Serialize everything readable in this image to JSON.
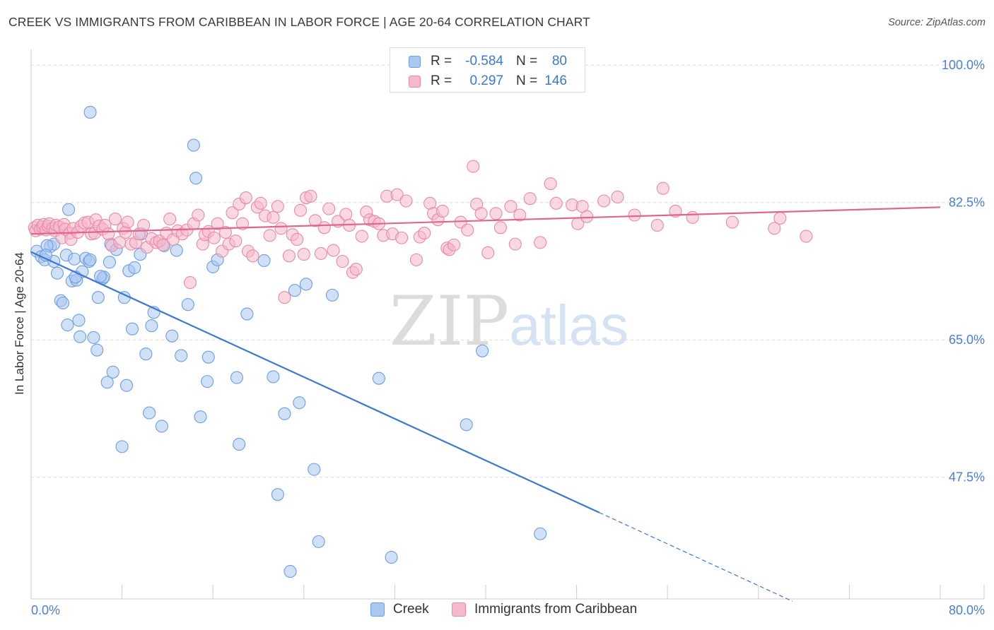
{
  "title": "CREEK VS IMMIGRANTS FROM CARIBBEAN IN LABOR FORCE | AGE 20-64 CORRELATION CHART",
  "source": "Source: ZipAtlas.com",
  "watermark": "ZIPatlas",
  "colors": {
    "creek_fill": "#a9c7f0",
    "creek_stroke": "#6e9ee0",
    "creek_line": "#3b78d0",
    "carib_fill": "#f6b8cb",
    "carib_stroke": "#e98aa8",
    "carib_line": "#e0668f",
    "accent_text": "#3b78d0",
    "grid": "#d9d9d9"
  },
  "legend_top": {
    "rows": [
      {
        "r_label": "R =",
        "r_value": "-0.584",
        "n_label": "N =",
        "n_value": "80"
      },
      {
        "r_label": "R =",
        "r_value": "0.297",
        "n_label": "N =",
        "n_value": "146"
      }
    ]
  },
  "legend_bottom": {
    "items": [
      {
        "label": "Creek"
      },
      {
        "label": "Immigrants from Caribbean"
      }
    ]
  },
  "chart_data": {
    "type": "scatter",
    "title": "CREEK VS IMMIGRANTS FROM CARIBBEAN IN LABOR FORCE | AGE 20-64 CORRELATION CHART",
    "xlabel": "",
    "ylabel": "In Labor Force | Age 20-64",
    "xlim": [
      0,
      80
    ],
    "ylim": [
      32,
      102
    ],
    "x_tick_labels": [
      "0.0%",
      "80.0%"
    ],
    "y_ticks": [
      47.5,
      65.0,
      82.5,
      100.0
    ],
    "y_tick_labels": [
      "47.5%",
      "65.0%",
      "82.5%",
      "100.0%"
    ],
    "grid": true,
    "legend_position": "top-center",
    "series": [
      {
        "name": "Creek",
        "r": -0.584,
        "n": 80,
        "trend": {
          "x0": 0,
          "y0": 76.2,
          "x1": 50,
          "y1": 43.0,
          "dashed_to_x": 67,
          "dashed_to_y": 31.7
        },
        "points": [
          [
            0.5,
            76.3
          ],
          [
            0.9,
            75.6
          ],
          [
            1.2,
            75.2
          ],
          [
            1.7,
            76.9
          ],
          [
            2.0,
            77.2
          ],
          [
            1.4,
            77.0
          ],
          [
            2.3,
            73.5
          ],
          [
            2.6,
            70.0
          ],
          [
            2.8,
            69.7
          ],
          [
            3.1,
            75.8
          ],
          [
            3.2,
            66.9
          ],
          [
            3.3,
            81.6
          ],
          [
            3.6,
            72.5
          ],
          [
            3.8,
            75.3
          ],
          [
            4.0,
            72.6
          ],
          [
            4.2,
            67.5
          ],
          [
            4.3,
            65.4
          ],
          [
            4.5,
            73.7
          ],
          [
            4.8,
            75.4
          ],
          [
            5.1,
            75.0
          ],
          [
            5.2,
            75.2
          ],
          [
            5.5,
            65.3
          ],
          [
            5.8,
            63.7
          ],
          [
            5.9,
            70.4
          ],
          [
            6.3,
            72.8
          ],
          [
            6.4,
            73.0
          ],
          [
            6.7,
            59.6
          ],
          [
            6.9,
            74.9
          ],
          [
            7.0,
            77.2
          ],
          [
            7.2,
            60.9
          ],
          [
            7.5,
            76.5
          ],
          [
            8.0,
            51.4
          ],
          [
            8.2,
            70.4
          ],
          [
            8.4,
            59.2
          ],
          [
            8.6,
            73.8
          ],
          [
            8.9,
            66.4
          ],
          [
            9.1,
            74.2
          ],
          [
            9.6,
            75.9
          ],
          [
            10.1,
            63.2
          ],
          [
            10.4,
            55.7
          ],
          [
            10.6,
            66.8
          ],
          [
            10.8,
            68.5
          ],
          [
            11.5,
            54.0
          ],
          [
            11.7,
            77.0
          ],
          [
            12.4,
            65.5
          ],
          [
            12.8,
            76.4
          ],
          [
            13.2,
            63.0
          ],
          [
            13.8,
            69.5
          ],
          [
            14.3,
            89.8
          ],
          [
            14.5,
            85.6
          ],
          [
            14.9,
            55.2
          ],
          [
            15.5,
            59.7
          ],
          [
            15.6,
            62.8
          ],
          [
            16.0,
            74.3
          ],
          [
            16.4,
            75.2
          ],
          [
            18.1,
            60.2
          ],
          [
            18.3,
            51.7
          ],
          [
            19.0,
            68.3
          ],
          [
            20.5,
            75.1
          ],
          [
            21.3,
            60.3
          ],
          [
            21.7,
            45.3
          ],
          [
            22.3,
            55.6
          ],
          [
            22.8,
            35.5
          ],
          [
            23.2,
            71.3
          ],
          [
            23.6,
            57.0
          ],
          [
            24.2,
            72.1
          ],
          [
            24.9,
            48.5
          ],
          [
            25.3,
            39.3
          ],
          [
            26.5,
            70.7
          ],
          [
            30.6,
            60.1
          ],
          [
            31.7,
            37.3
          ],
          [
            38.3,
            54.2
          ],
          [
            39.7,
            63.6
          ],
          [
            44.8,
            40.3
          ],
          [
            5.2,
            94.0
          ],
          [
            2.0,
            75.0
          ],
          [
            9.7,
            78.5
          ],
          [
            1.3,
            75.8
          ],
          [
            3.9,
            73.0
          ],
          [
            6.1,
            73.1
          ]
        ]
      },
      {
        "name": "Immigrants from Caribbean",
        "r": 0.297,
        "n": 146,
        "trend": {
          "x0": 0,
          "y0": 78.5,
          "x1": 80,
          "y1": 81.9
        },
        "points": [
          [
            0.3,
            79.3
          ],
          [
            0.4,
            78.9
          ],
          [
            0.6,
            79.6
          ],
          [
            0.8,
            79.1
          ],
          [
            1.0,
            79.4
          ],
          [
            1.1,
            79.7
          ],
          [
            1.3,
            79.0
          ],
          [
            1.5,
            79.5
          ],
          [
            1.6,
            79.8
          ],
          [
            1.9,
            79.2
          ],
          [
            2.1,
            78.9
          ],
          [
            2.2,
            79.6
          ],
          [
            2.5,
            79.4
          ],
          [
            2.7,
            78.0
          ],
          [
            2.9,
            79.7
          ],
          [
            3.0,
            79.1
          ],
          [
            3.4,
            78.6
          ],
          [
            3.5,
            77.8
          ],
          [
            3.7,
            79.2
          ],
          [
            4.1,
            78.7
          ],
          [
            4.4,
            79.5
          ],
          [
            4.7,
            79.9
          ],
          [
            5.0,
            80.0
          ],
          [
            5.3,
            78.5
          ],
          [
            5.6,
            78.6
          ],
          [
            5.7,
            80.3
          ],
          [
            6.0,
            79.5
          ],
          [
            6.3,
            79.1
          ],
          [
            6.5,
            79.6
          ],
          [
            6.8,
            78.5
          ],
          [
            7.1,
            77.0
          ],
          [
            7.4,
            80.4
          ],
          [
            7.8,
            77.4
          ],
          [
            8.1,
            79.2
          ],
          [
            8.3,
            78.7
          ],
          [
            8.5,
            80.0
          ],
          [
            8.8,
            77.2
          ],
          [
            9.2,
            77.4
          ],
          [
            9.5,
            78.5
          ],
          [
            9.9,
            79.6
          ],
          [
            10.2,
            76.8
          ],
          [
            10.6,
            77.9
          ],
          [
            11.0,
            77.4
          ],
          [
            11.3,
            77.6
          ],
          [
            11.6,
            77.1
          ],
          [
            11.9,
            78.6
          ],
          [
            12.2,
            80.4
          ],
          [
            12.5,
            77.8
          ],
          [
            12.9,
            78.9
          ],
          [
            13.3,
            78.5
          ],
          [
            13.7,
            79.0
          ],
          [
            14.0,
            72.3
          ],
          [
            14.3,
            79.8
          ],
          [
            14.7,
            80.9
          ],
          [
            15.1,
            77.2
          ],
          [
            15.3,
            78.4
          ],
          [
            15.6,
            78.8
          ],
          [
            16.1,
            78.0
          ],
          [
            16.4,
            79.8
          ],
          [
            16.8,
            76.3
          ],
          [
            17.1,
            78.7
          ],
          [
            17.4,
            77.2
          ],
          [
            17.7,
            81.2
          ],
          [
            18.0,
            77.6
          ],
          [
            18.3,
            82.3
          ],
          [
            18.6,
            79.8
          ],
          [
            18.9,
            83.1
          ],
          [
            19.1,
            76.3
          ],
          [
            19.5,
            75.7
          ],
          [
            19.9,
            81.9
          ],
          [
            20.2,
            82.4
          ],
          [
            20.6,
            80.8
          ],
          [
            21.0,
            78.3
          ],
          [
            21.3,
            80.6
          ],
          [
            21.7,
            82.0
          ],
          [
            22.0,
            79.2
          ],
          [
            22.3,
            70.4
          ],
          [
            22.7,
            75.7
          ],
          [
            23.0,
            78.4
          ],
          [
            23.4,
            77.8
          ],
          [
            23.7,
            81.5
          ],
          [
            24.0,
            75.9
          ],
          [
            24.2,
            83.1
          ],
          [
            24.6,
            83.3
          ],
          [
            25.0,
            80.2
          ],
          [
            25.5,
            76.0
          ],
          [
            25.8,
            79.3
          ],
          [
            26.2,
            81.7
          ],
          [
            26.6,
            76.4
          ],
          [
            27.0,
            80.1
          ],
          [
            27.4,
            75.0
          ],
          [
            27.7,
            81.0
          ],
          [
            28.0,
            79.6
          ],
          [
            28.3,
            73.6
          ],
          [
            28.6,
            74.0
          ],
          [
            29.1,
            78.2
          ],
          [
            29.5,
            81.3
          ],
          [
            29.8,
            80.3
          ],
          [
            30.2,
            80.1
          ],
          [
            30.6,
            79.8
          ],
          [
            31.0,
            78.3
          ],
          [
            31.3,
            83.3
          ],
          [
            31.8,
            78.5
          ],
          [
            32.2,
            83.5
          ],
          [
            32.6,
            78.0
          ],
          [
            33.0,
            82.7
          ],
          [
            33.9,
            75.2
          ],
          [
            34.2,
            78.1
          ],
          [
            34.6,
            78.6
          ],
          [
            35.1,
            82.4
          ],
          [
            35.4,
            81.1
          ],
          [
            35.8,
            80.3
          ],
          [
            36.2,
            81.4
          ],
          [
            36.6,
            76.7
          ],
          [
            36.8,
            76.5
          ],
          [
            37.2,
            77.1
          ],
          [
            37.8,
            80.0
          ],
          [
            38.4,
            79.0
          ],
          [
            38.9,
            87.1
          ],
          [
            39.2,
            82.3
          ],
          [
            39.6,
            81.1
          ],
          [
            40.2,
            76.1
          ],
          [
            40.9,
            81.1
          ],
          [
            41.3,
            79.3
          ],
          [
            42.2,
            82.0
          ],
          [
            42.6,
            77.2
          ],
          [
            43.0,
            80.9
          ],
          [
            43.9,
            83.0
          ],
          [
            44.8,
            77.4
          ],
          [
            45.7,
            84.9
          ],
          [
            46.2,
            82.4
          ],
          [
            47.6,
            82.2
          ],
          [
            48.1,
            79.8
          ],
          [
            48.5,
            82.0
          ],
          [
            48.9,
            80.7
          ],
          [
            50.4,
            82.7
          ],
          [
            51.6,
            83.2
          ],
          [
            53.1,
            80.9
          ],
          [
            55.1,
            79.6
          ],
          [
            55.6,
            84.3
          ],
          [
            56.7,
            81.4
          ],
          [
            58.2,
            80.6
          ],
          [
            61.7,
            80.0
          ],
          [
            65.4,
            79.2
          ],
          [
            65.9,
            80.5
          ],
          [
            68.2,
            78.2
          ]
        ]
      }
    ]
  }
}
